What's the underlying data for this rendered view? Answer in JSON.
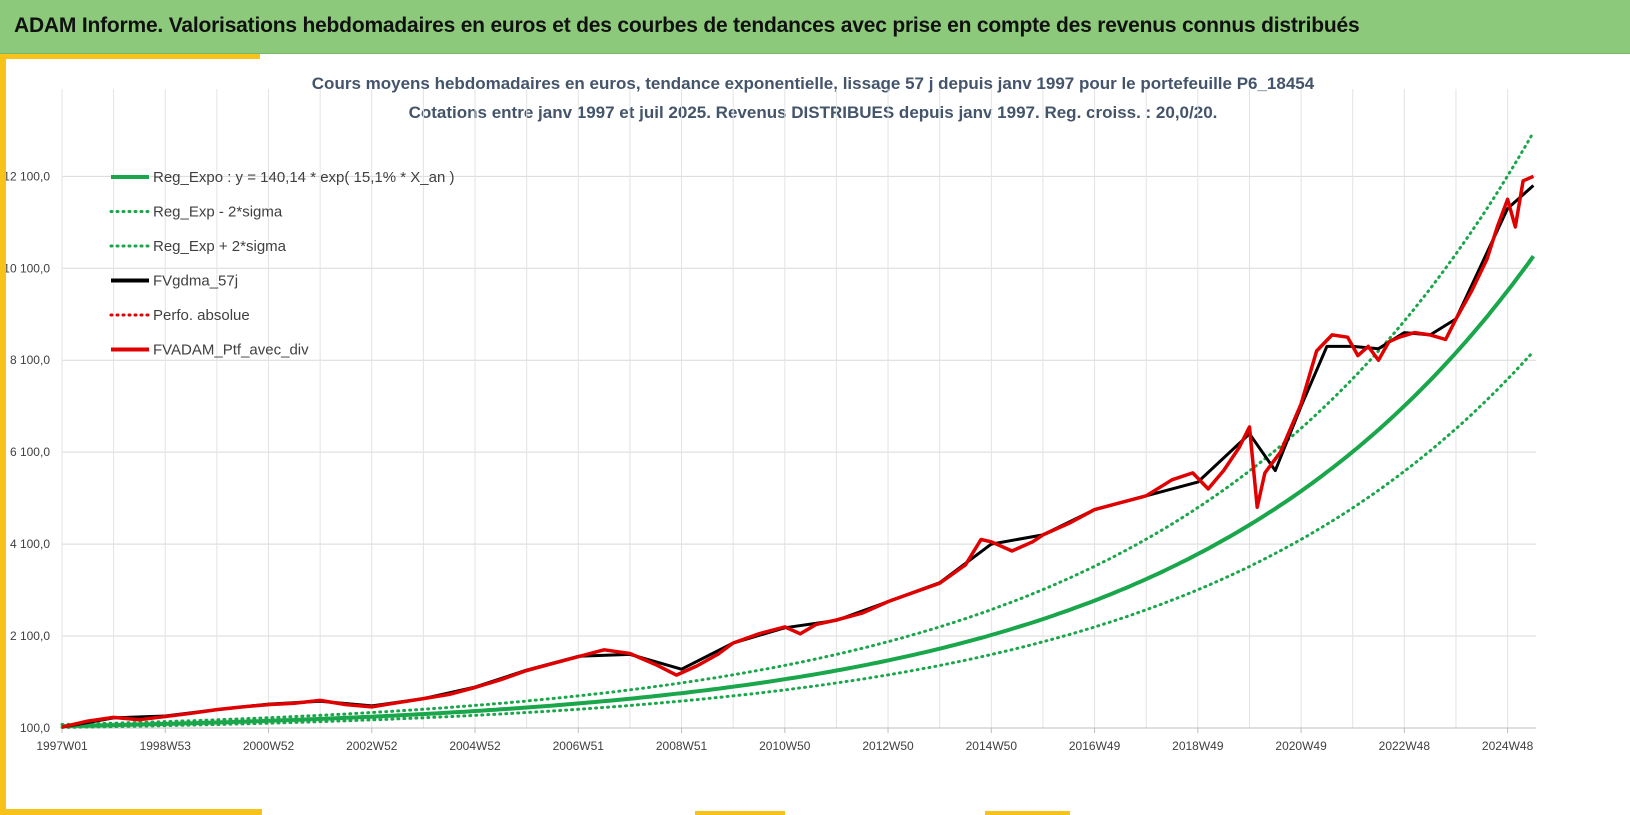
{
  "header": {
    "title": "ADAM Informe. Valorisations hebdomadaires en euros et des courbes de tendances avec prise en compte des revenus connus distribués"
  },
  "chart_data": {
    "type": "line",
    "title": "Cours moyens hebdomadaires  en euros, tendance exponentielle, lissage 57 j depuis janv 1997 pour le portefeuille P6_18454",
    "subtitle": "Cotations entre janv 1997 et juil 2025. Revenus DISTRIBUES depuis janv 1997. Reg. croiss. : 20,0/20.",
    "xlabel": "",
    "ylabel": "",
    "x_ticks": [
      "1997W01",
      "1998W53",
      "2000W52",
      "2002W52",
      "2004W52",
      "2006W51",
      "2008W51",
      "2010W50",
      "2012W50",
      "2014W50",
      "2016W49",
      "2018W49",
      "2020W49",
      "2022W48",
      "2024W48"
    ],
    "x_range": [
      1997.0,
      2025.55
    ],
    "y_ticks": [
      "100,0",
      "2 100,0",
      "4 100,0",
      "6 100,0",
      "8 100,0",
      "10 100,0",
      "12 100,0"
    ],
    "ylim": [
      100,
      14000
    ],
    "grid": true,
    "legend_position": "top-left",
    "regression": {
      "a": 140.14,
      "rate": 0.151,
      "sigma_factor_low": 0.8,
      "sigma_factor_high": 1.26
    },
    "legend": [
      {
        "name": "Reg_Expo : y = 140,14 * exp( 15,1% *  X_an )",
        "color": "#1aa64a",
        "style": "solid"
      },
      {
        "name": "Reg_Exp - 2*sigma",
        "color": "#1aa64a",
        "style": "dotted"
      },
      {
        "name": "Reg_Exp + 2*sigma",
        "color": "#1aa64a",
        "style": "dotted"
      },
      {
        "name": "FVgdma_57j",
        "color": "#000000",
        "style": "solid"
      },
      {
        "name": "Perfo. absolue",
        "color": "#e00000",
        "style": "dotted"
      },
      {
        "name": "FVADAM_Ptf_avec_div",
        "color": "#e00000",
        "style": "solid"
      }
    ],
    "series": [
      {
        "name": "FVADAM_Ptf_avec_div",
        "x": [
          1997.0,
          1997.5,
          1998.0,
          1998.5,
          1999.0,
          1999.5,
          2000.0,
          2000.5,
          2001.0,
          2001.5,
          2002.0,
          2002.5,
          2003.0,
          2003.5,
          2004.0,
          2004.5,
          2005.0,
          2005.5,
          2006.0,
          2006.5,
          2007.0,
          2007.5,
          2008.0,
          2008.5,
          2008.9,
          2009.3,
          2009.7,
          2010.0,
          2010.5,
          2011.0,
          2011.3,
          2011.6,
          2012.0,
          2012.5,
          2013.0,
          2013.5,
          2014.0,
          2014.5,
          2014.8,
          2015.0,
          2015.4,
          2015.8,
          2016.0,
          2016.5,
          2017.0,
          2017.5,
          2018.0,
          2018.5,
          2018.9,
          2019.2,
          2019.5,
          2019.8,
          2020.0,
          2020.15,
          2020.3,
          2020.6,
          2021.0,
          2021.3,
          2021.6,
          2021.9,
          2022.1,
          2022.3,
          2022.5,
          2022.7,
          2022.9,
          2023.2,
          2023.5,
          2023.8,
          2024.0,
          2024.3,
          2024.6,
          2024.8,
          2025.0,
          2025.15,
          2025.3,
          2025.5
        ],
        "y": [
          120,
          250,
          330,
          280,
          350,
          420,
          500,
          560,
          610,
          640,
          700,
          610,
          560,
          650,
          740,
          830,
          980,
          1150,
          1350,
          1500,
          1650,
          1800,
          1720,
          1480,
          1250,
          1450,
          1700,
          1950,
          2150,
          2300,
          2150,
          2350,
          2450,
          2600,
          2850,
          3050,
          3250,
          3650,
          4200,
          4150,
          3950,
          4150,
          4300,
          4550,
          4850,
          5000,
          5150,
          5500,
          5650,
          5300,
          5700,
          6200,
          6650,
          4900,
          5650,
          6100,
          7150,
          8300,
          8650,
          8600,
          8200,
          8400,
          8100,
          8500,
          8600,
          8700,
          8650,
          8550,
          9000,
          9600,
          10300,
          11000,
          11600,
          11000,
          12000,
          12100
        ]
      },
      {
        "name": "FVgdma_57j",
        "x": [
          1997.0,
          1998.0,
          1999.0,
          2000.0,
          2001.0,
          2002.0,
          2003.0,
          2004.0,
          2005.0,
          2006.0,
          2007.0,
          2008.0,
          2009.0,
          2010.0,
          2011.0,
          2012.0,
          2013.0,
          2014.0,
          2015.0,
          2016.0,
          2017.0,
          2018.0,
          2019.0,
          2020.0,
          2020.5,
          2021.0,
          2021.5,
          2022.0,
          2022.5,
          2023.0,
          2023.5,
          2024.0,
          2024.5,
          2025.0,
          2025.5
        ],
        "y": [
          120,
          320,
          360,
          500,
          620,
          680,
          580,
          740,
          990,
          1360,
          1660,
          1700,
          1380,
          1950,
          2280,
          2440,
          2850,
          3260,
          4100,
          4300,
          4850,
          5150,
          5450,
          6500,
          5700,
          7100,
          8400,
          8400,
          8350,
          8700,
          8650,
          9000,
          10200,
          11400,
          11900
        ]
      }
    ]
  }
}
